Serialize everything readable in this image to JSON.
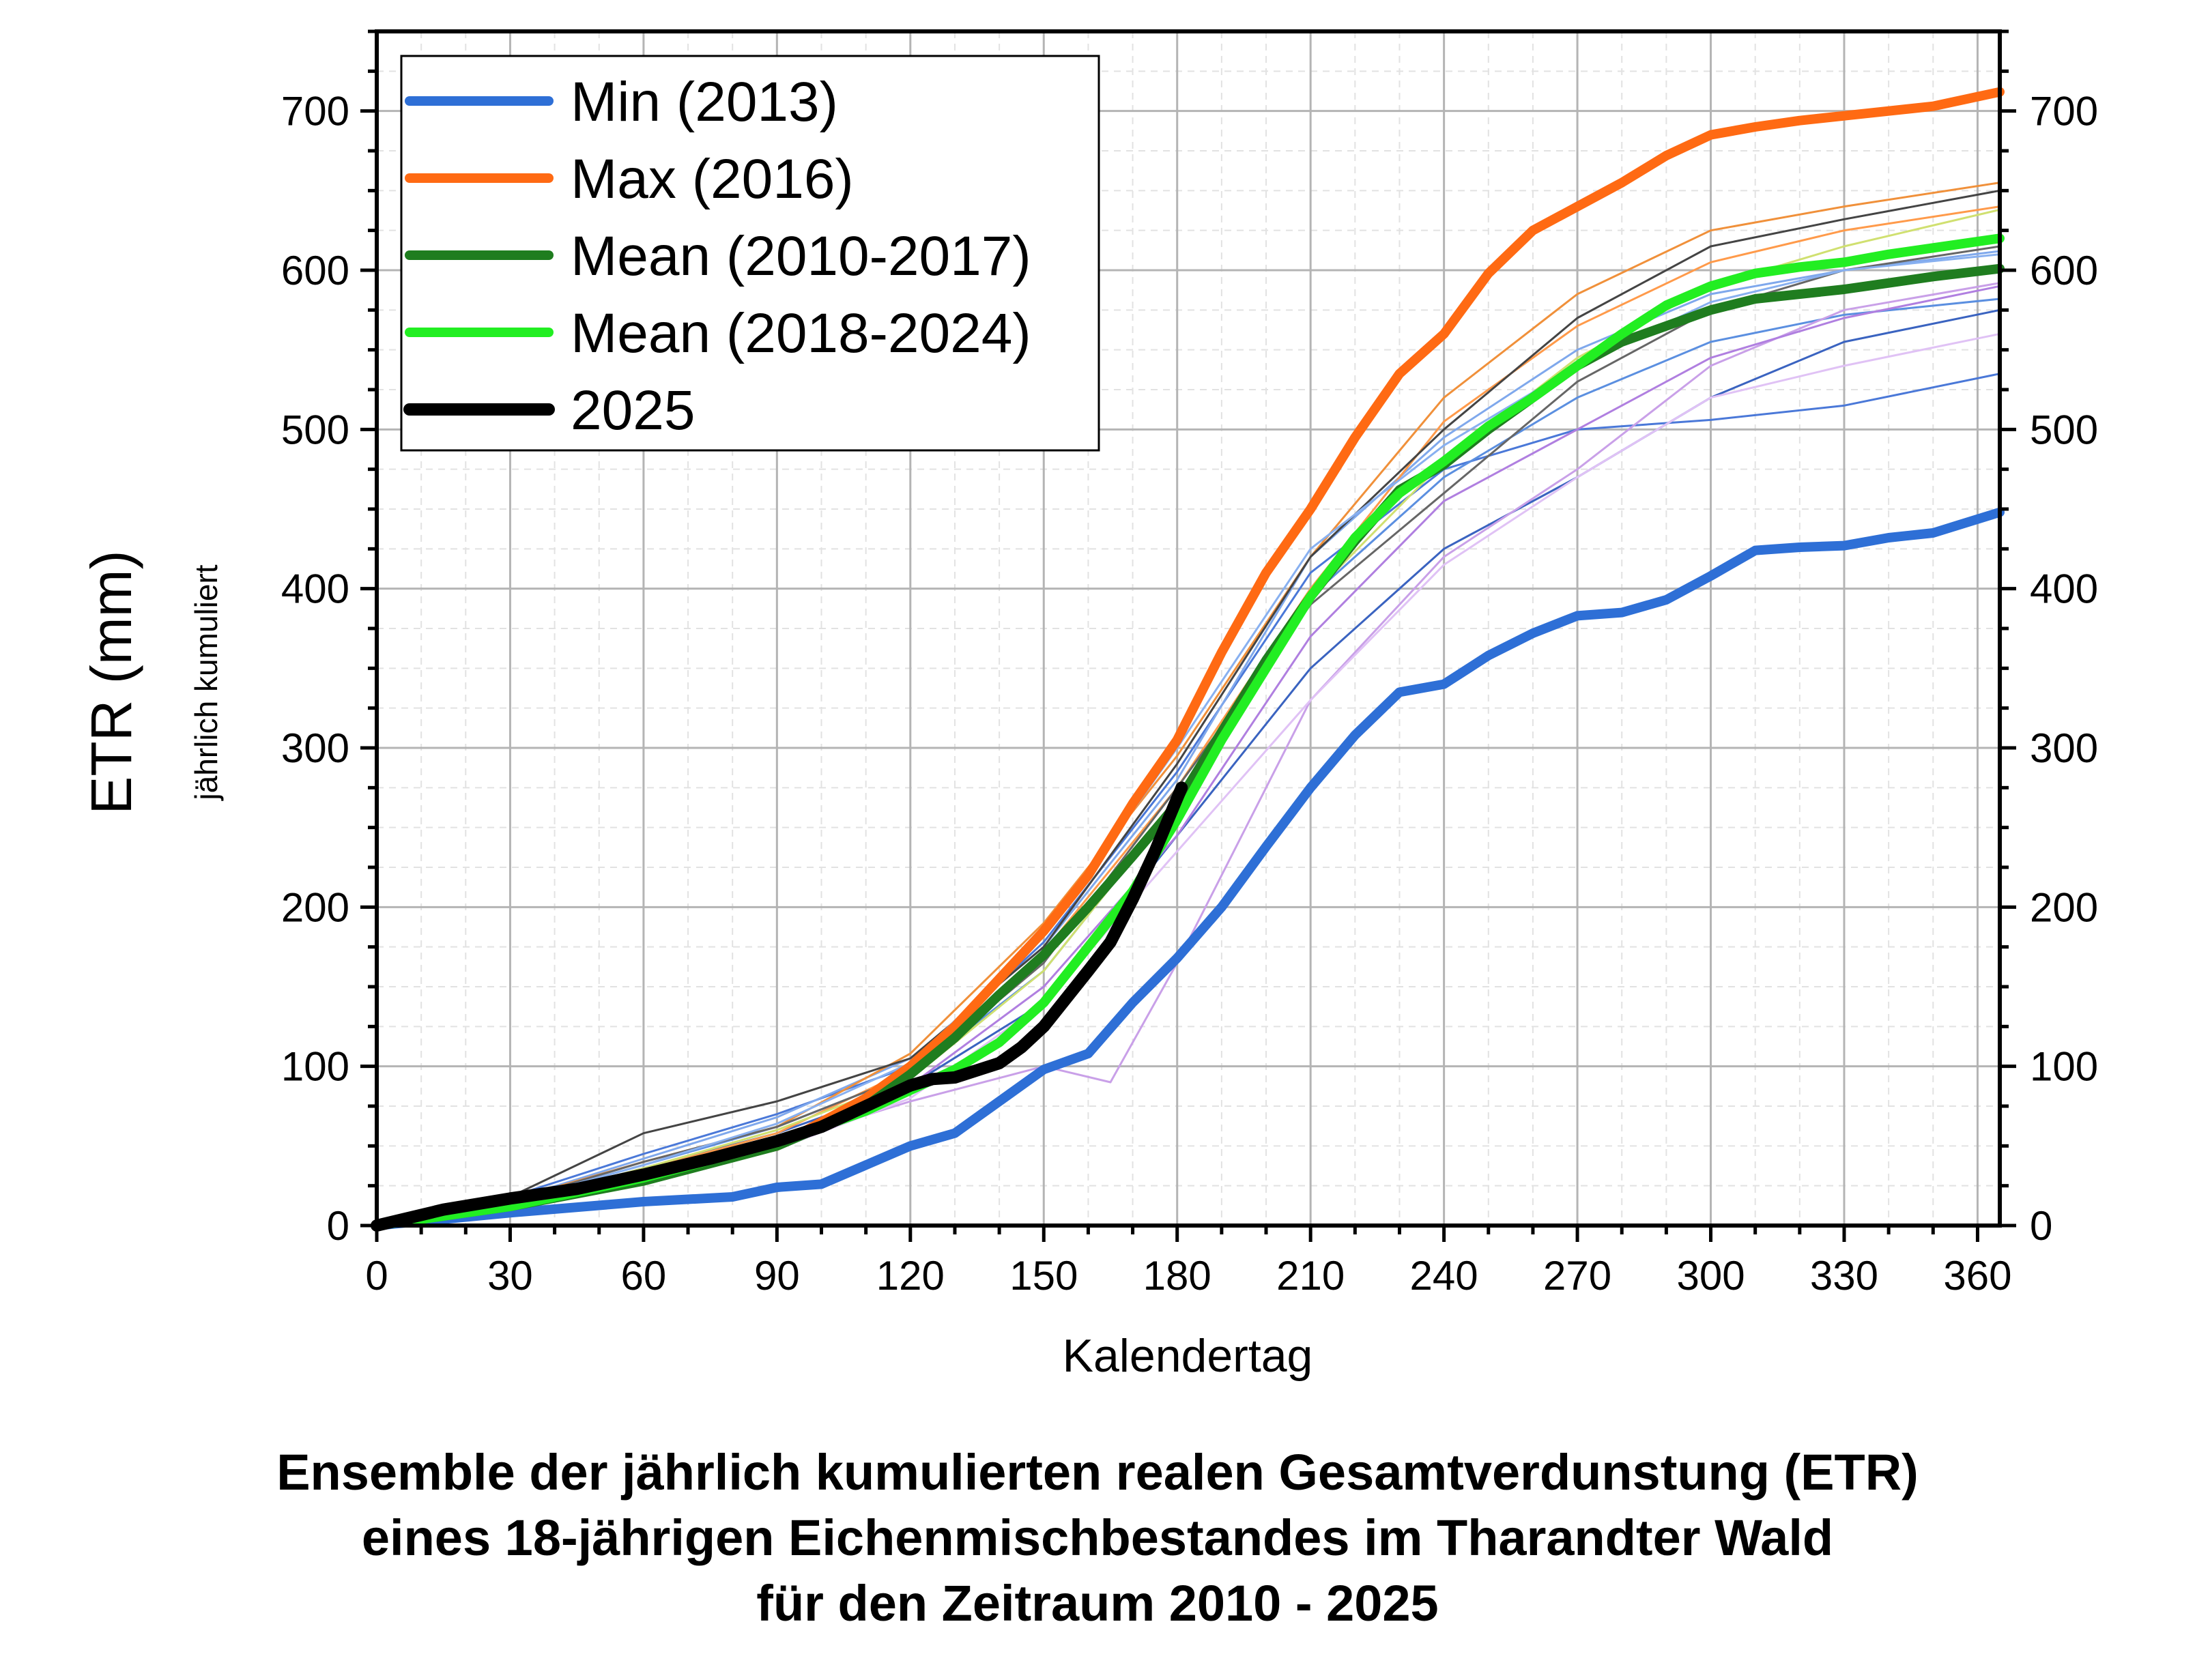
{
  "chart_data": {
    "type": "line",
    "title": "Ensemble der jährlich kumulierten realen Gesamtverdunstung (ETR) eines 18-jährigen Eichenmischbestandes im Tharandter Wald für den Zeitraum 2010 - 2025",
    "xlabel": "Kalendertag",
    "ylabel": "ETR (mm)",
    "ylabel_sub": "jährlich kumuliert",
    "xlim": [
      0,
      365
    ],
    "ylim": [
      0,
      750
    ],
    "xticks": [
      0,
      30,
      60,
      90,
      120,
      150,
      180,
      210,
      240,
      270,
      300,
      330,
      360
    ],
    "yticks": [
      0,
      100,
      200,
      300,
      400,
      500,
      600,
      700
    ],
    "grid": true,
    "right_axis": true,
    "legend_position": "top-left",
    "series": [
      {
        "name": "Min (2013)",
        "color": "#2e6fd6",
        "width": 14,
        "legend": true,
        "x": [
          0,
          30,
          60,
          80,
          90,
          100,
          110,
          120,
          130,
          140,
          150,
          160,
          170,
          180,
          190,
          200,
          210,
          220,
          230,
          240,
          250,
          260,
          270,
          280,
          290,
          300,
          310,
          320,
          330,
          340,
          350,
          365
        ],
        "y": [
          0,
          8,
          15,
          18,
          24,
          26,
          38,
          50,
          58,
          78,
          98,
          108,
          140,
          168,
          200,
          238,
          275,
          308,
          335,
          340,
          358,
          372,
          383,
          385,
          393,
          408,
          424,
          426,
          427,
          432,
          435,
          448
        ]
      },
      {
        "name": "Max (2016)",
        "color": "#ff6a13",
        "width": 14,
        "legend": true,
        "x": [
          0,
          30,
          60,
          90,
          100,
          110,
          120,
          130,
          140,
          150,
          160,
          170,
          180,
          190,
          200,
          210,
          220,
          230,
          240,
          250,
          260,
          270,
          280,
          290,
          300,
          310,
          320,
          330,
          340,
          350,
          365
        ],
        "y": [
          0,
          15,
          30,
          50,
          65,
          80,
          100,
          125,
          155,
          185,
          220,
          265,
          305,
          360,
          410,
          450,
          495,
          535,
          560,
          598,
          625,
          640,
          655,
          672,
          685,
          690,
          694,
          697,
          700,
          703,
          712
        ]
      },
      {
        "name": "Mean (2010-2017)",
        "color": "#1f7d1f",
        "width": 14,
        "legend": true,
        "x": [
          0,
          30,
          60,
          90,
          100,
          110,
          120,
          130,
          140,
          150,
          160,
          170,
          180,
          190,
          200,
          210,
          220,
          230,
          240,
          250,
          260,
          270,
          280,
          290,
          300,
          310,
          320,
          330,
          340,
          350,
          365
        ],
        "y": [
          0,
          12,
          28,
          50,
          62,
          75,
          95,
          118,
          145,
          170,
          200,
          232,
          265,
          310,
          355,
          395,
          430,
          462,
          478,
          500,
          520,
          540,
          555,
          565,
          575,
          582,
          585,
          588,
          592,
          596,
          601
        ]
      },
      {
        "name": "Mean (2018-2024)",
        "color": "#22ee22",
        "width": 14,
        "legend": true,
        "x": [
          0,
          30,
          60,
          90,
          100,
          110,
          120,
          130,
          140,
          150,
          160,
          170,
          180,
          190,
          200,
          210,
          220,
          230,
          240,
          250,
          260,
          270,
          280,
          290,
          300,
          310,
          320,
          330,
          340,
          350,
          365
        ],
        "y": [
          0,
          12,
          30,
          52,
          62,
          72,
          85,
          98,
          115,
          140,
          175,
          210,
          255,
          305,
          350,
          395,
          432,
          460,
          480,
          502,
          520,
          540,
          560,
          578,
          590,
          598,
          602,
          605,
          610,
          614,
          620
        ]
      },
      {
        "name": "2025",
        "color": "#000000",
        "width": 18,
        "legend": true,
        "x": [
          0,
          15,
          30,
          45,
          60,
          75,
          90,
          100,
          110,
          120,
          125,
          130,
          140,
          145,
          150,
          160,
          165,
          170,
          175,
          181
        ],
        "y": [
          0,
          10,
          17,
          23,
          32,
          42,
          53,
          62,
          75,
          88,
          92,
          93,
          102,
          112,
          125,
          160,
          178,
          205,
          235,
          275
        ]
      }
    ],
    "background_years": [
      {
        "color": "#4a78d8",
        "x": [
          0,
          30,
          60,
          90,
          120,
          150,
          180,
          210,
          240,
          270,
          300,
          330,
          365
        ],
        "y": [
          0,
          18,
          45,
          70,
          100,
          178,
          285,
          410,
          475,
          500,
          506,
          515,
          535
        ]
      },
      {
        "color": "#5b8fe0",
        "x": [
          0,
          30,
          60,
          90,
          120,
          150,
          180,
          210,
          240,
          270,
          300,
          330,
          365
        ],
        "y": [
          0,
          15,
          38,
          62,
          95,
          160,
          265,
          395,
          470,
          520,
          555,
          572,
          582
        ]
      },
      {
        "color": "#7fa8ec",
        "x": [
          0,
          30,
          60,
          90,
          120,
          150,
          180,
          210,
          240,
          270,
          300,
          330,
          365
        ],
        "y": [
          0,
          16,
          42,
          68,
          105,
          175,
          280,
          420,
          495,
          550,
          585,
          600,
          612
        ]
      },
      {
        "color": "#3a63c0",
        "x": [
          0,
          30,
          60,
          90,
          120,
          150,
          180,
          210,
          240,
          270,
          300,
          330,
          365
        ],
        "y": [
          0,
          14,
          36,
          58,
          88,
          140,
          245,
          350,
          425,
          470,
          520,
          555,
          575
        ]
      },
      {
        "color": "#f0903a",
        "x": [
          0,
          30,
          60,
          90,
          120,
          150,
          180,
          210,
          240,
          270,
          300,
          330,
          365
        ],
        "y": [
          0,
          16,
          40,
          62,
          108,
          190,
          295,
          420,
          520,
          585,
          625,
          640,
          655
        ]
      },
      {
        "color": "#ff9a4a",
        "x": [
          0,
          30,
          60,
          90,
          120,
          150,
          180,
          210,
          240,
          270,
          300,
          330,
          365
        ],
        "y": [
          0,
          14,
          35,
          58,
          98,
          172,
          275,
          400,
          505,
          565,
          605,
          625,
          640
        ]
      },
      {
        "color": "#444444",
        "x": [
          0,
          30,
          60,
          90,
          120,
          150,
          180,
          210,
          240,
          270,
          300,
          330,
          365
        ],
        "y": [
          0,
          18,
          58,
          78,
          105,
          175,
          290,
          420,
          500,
          570,
          615,
          632,
          650
        ]
      },
      {
        "color": "#666666",
        "x": [
          0,
          30,
          60,
          90,
          120,
          150,
          180,
          210,
          240,
          270,
          300,
          330,
          365
        ],
        "y": [
          0,
          15,
          40,
          62,
          95,
          165,
          275,
          390,
          460,
          530,
          575,
          600,
          615
        ]
      },
      {
        "color": "#c9a0e8",
        "x": [
          0,
          30,
          60,
          90,
          120,
          150,
          165,
          180,
          210,
          240,
          270,
          300,
          330,
          365
        ],
        "y": [
          0,
          12,
          30,
          52,
          78,
          100,
          90,
          165,
          330,
          420,
          475,
          540,
          575,
          592
        ]
      },
      {
        "color": "#e0c2f5",
        "x": [
          0,
          30,
          60,
          90,
          120,
          150,
          180,
          210,
          240,
          270,
          300,
          330,
          365
        ],
        "y": [
          0,
          10,
          26,
          48,
          80,
          140,
          235,
          330,
          415,
          470,
          520,
          540,
          560
        ]
      },
      {
        "color": "#b07fe0",
        "x": [
          0,
          30,
          60,
          90,
          120,
          150,
          180,
          210,
          240,
          270,
          300,
          330,
          365
        ],
        "y": [
          0,
          13,
          32,
          55,
          88,
          150,
          245,
          370,
          455,
          500,
          545,
          570,
          590
        ]
      },
      {
        "color": "#d0e070",
        "x": [
          0,
          30,
          60,
          90,
          120,
          150,
          180,
          210,
          240,
          270,
          300,
          330,
          365
        ],
        "y": [
          0,
          14,
          36,
          60,
          92,
          160,
          265,
          395,
          480,
          545,
          590,
          615,
          638
        ]
      },
      {
        "color": "#88b0f0",
        "x": [
          0,
          30,
          60,
          90,
          120,
          150,
          180,
          210,
          240,
          270,
          300,
          330,
          365
        ],
        "y": [
          0,
          15,
          38,
          64,
          102,
          182,
          300,
          425,
          490,
          540,
          580,
          600,
          610
        ]
      }
    ]
  }
}
